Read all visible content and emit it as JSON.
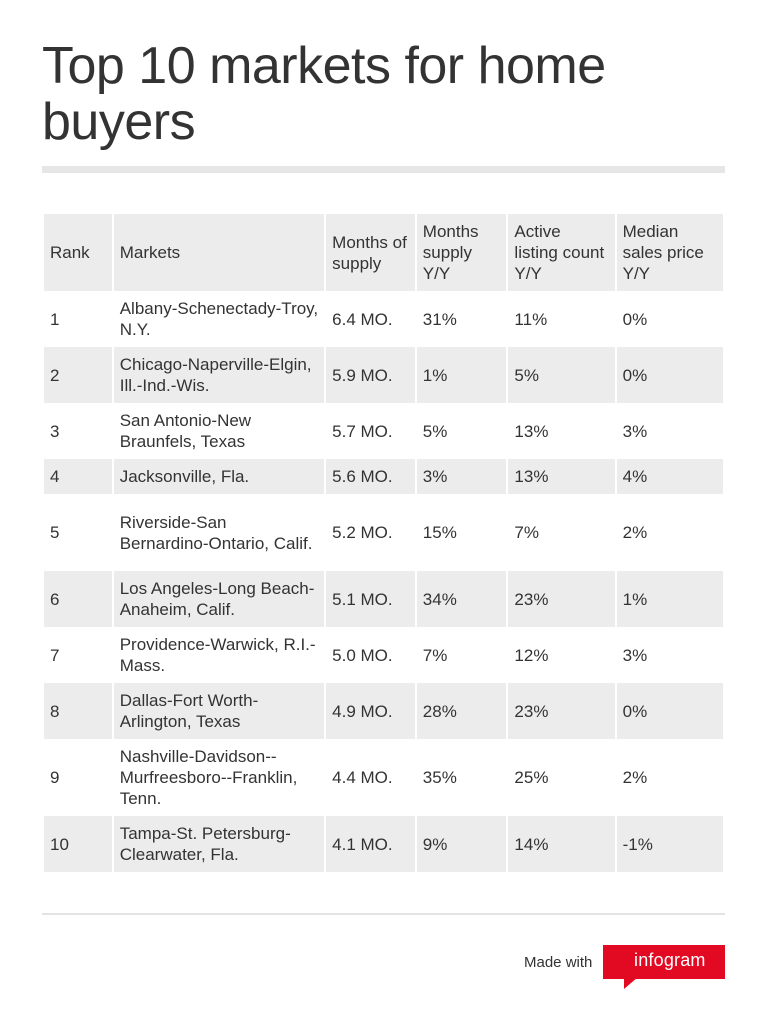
{
  "title": "Top 10 markets for home buyers",
  "table": {
    "headers": {
      "rank": "Rank",
      "markets": "Markets",
      "months": "Months of supply",
      "months_yy": "Months supply Y/Y",
      "active_yy": "Active listing count Y/Y",
      "median_yy": "Median sales price Y/Y"
    },
    "rows": [
      {
        "rank": "1",
        "market": "Albany-Schenectady-Troy, N.Y.",
        "months": "6.4 MO.",
        "months_yy": "31%",
        "active_yy": "11%",
        "median_yy": "0%"
      },
      {
        "rank": "2",
        "market": "Chicago-Naperville-Elgin, Ill.-Ind.-Wis.",
        "months": "5.9 MO.",
        "months_yy": "1%",
        "active_yy": "5%",
        "median_yy": "0%"
      },
      {
        "rank": "3",
        "market": "San Antonio-New Braunfels, Texas",
        "months": "5.7 MO.",
        "months_yy": "5%",
        "active_yy": "13%",
        "median_yy": "3%"
      },
      {
        "rank": "4",
        "market": "Jacksonville, Fla.",
        "months": "5.6 MO.",
        "months_yy": "3%",
        "active_yy": "13%",
        "median_yy": "4%"
      },
      {
        "rank": "5",
        "market": "Riverside-San Bernardino-Ontario, Calif.",
        "months": "5.2 MO.",
        "months_yy": "15%",
        "active_yy": "7%",
        "median_yy": "2%"
      },
      {
        "rank": "6",
        "market": "Los Angeles-Long Beach-Anaheim, Calif.",
        "months": "5.1 MO.",
        "months_yy": "34%",
        "active_yy": "23%",
        "median_yy": "1%"
      },
      {
        "rank": "7",
        "market": "Providence-Warwick, R.I.-Mass.",
        "months": "5.0 MO.",
        "months_yy": "7%",
        "active_yy": "12%",
        "median_yy": "3%"
      },
      {
        "rank": "8",
        "market": "Dallas-Fort Worth-Arlington, Texas",
        "months": "4.9 MO.",
        "months_yy": "28%",
        "active_yy": "23%",
        "median_yy": "0%"
      },
      {
        "rank": "9",
        "market": "Nashville-Davidson--Murfreesboro--Franklin, Tenn.",
        "months": "4.4 MO.",
        "months_yy": "35%",
        "active_yy": "25%",
        "median_yy": "2%"
      },
      {
        "rank": "10",
        "market": "Tampa-St. Petersburg-Clearwater, Fla.",
        "months": "4.1 MO.",
        "months_yy": "9%",
        "active_yy": "14%",
        "median_yy": "-1%"
      }
    ]
  },
  "footer": {
    "made_with": "Made with",
    "brand": "infogram",
    "brand_color": "#e20a23"
  }
}
